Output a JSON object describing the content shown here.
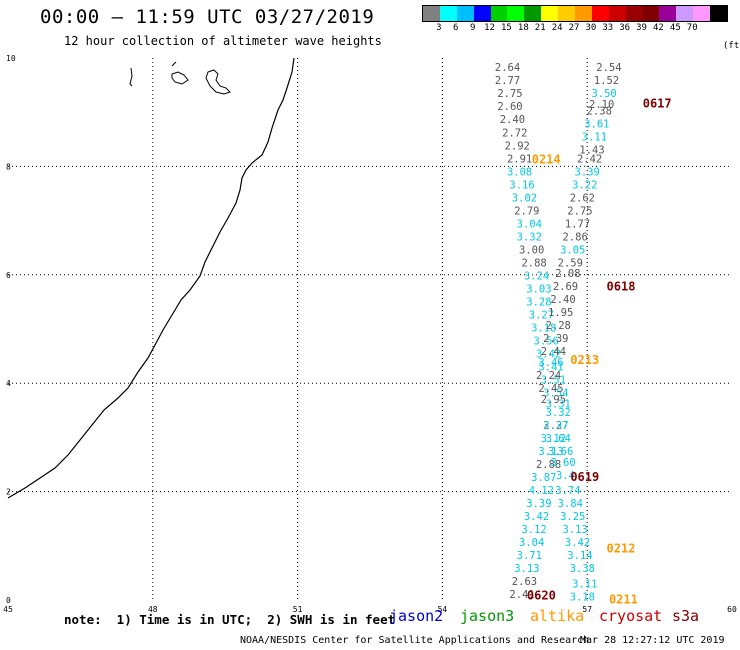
{
  "title": "00:00 – 11:59 UTC 03/27/2019",
  "subtitle": "12 hour collection of altimeter wave heights",
  "color_scale": {
    "colors": [
      "#808080",
      "#00ffff",
      "#00bfff",
      "#0000ff",
      "#00d000",
      "#00ff00",
      "#009900",
      "#ffff00",
      "#ffcc00",
      "#ff9900",
      "#ff0000",
      "#cc0000",
      "#990000",
      "#800000",
      "#990099",
      "#cc99ff",
      "#ff99ff",
      "#000000"
    ],
    "labels": [
      "3",
      "6",
      "9",
      "12",
      "15",
      "18",
      "21",
      "24",
      "27",
      "30",
      "33",
      "36",
      "39",
      "42",
      "45",
      "70"
    ],
    "unit": "(ft)"
  },
  "axes": {
    "x_ticks": [
      "45",
      "48",
      "51",
      "54",
      "57",
      "60"
    ],
    "y_ticks": [
      "0",
      "2",
      "4",
      "6",
      "8",
      "10"
    ],
    "x_range": [
      45,
      60
    ],
    "y_range": [
      0,
      10
    ]
  },
  "note": "note:  1) Time is in UTC;  2) SWH is in feet",
  "legend": [
    {
      "label": "jason2",
      "color": "#0000cc"
    },
    {
      "label": "jason3",
      "color": "#009900"
    },
    {
      "label": "altika",
      "color": "#ff9900"
    },
    {
      "label": "cryosat",
      "color": "#cc0000"
    },
    {
      "label": "s3a",
      "color": "#800000"
    }
  ],
  "credit": "NOAA/NESDIS Center for Satellite Applications and Research",
  "generated": "Mar 28 12:27:12 UTC 2019",
  "track_colors": {
    "gray": "#555555",
    "cyan": "#00c8e6"
  },
  "pass_labels": [
    {
      "text": "0214",
      "lon": 56.15,
      "lat": 8.15,
      "color": "#ff9900"
    },
    {
      "text": "0213",
      "lon": 56.95,
      "lat": 4.45,
      "color": "#ff9900"
    },
    {
      "text": "0212",
      "lon": 57.7,
      "lat": 0.97,
      "color": "#ff9900"
    },
    {
      "text": "0211",
      "lon": 57.75,
      "lat": 0.03,
      "color": "#ff9900"
    },
    {
      "text": "0617",
      "lon": 58.45,
      "lat": 9.18,
      "color": "#800000"
    },
    {
      "text": "0618",
      "lon": 57.7,
      "lat": 5.8,
      "color": "#800000"
    },
    {
      "text": "0619",
      "lon": 56.95,
      "lat": 2.29,
      "color": "#800000"
    },
    {
      "text": "0620",
      "lon": 56.05,
      "lat": 0.1,
      "color": "#800000"
    }
  ],
  "track_a": [
    {
      "v": "2.64",
      "lon": 55.35,
      "lat": 9.83,
      "c": "gray"
    },
    {
      "v": "2.77",
      "lon": 55.35,
      "lat": 9.59,
      "c": "gray"
    },
    {
      "v": "2.75",
      "lon": 55.4,
      "lat": 9.35,
      "c": "gray"
    },
    {
      "v": "2.60",
      "lon": 55.4,
      "lat": 9.11,
      "c": "gray"
    },
    {
      "v": "2.40",
      "lon": 55.45,
      "lat": 8.87,
      "c": "gray"
    },
    {
      "v": "2.72",
      "lon": 55.5,
      "lat": 8.63,
      "c": "gray"
    },
    {
      "v": "2.92",
      "lon": 55.55,
      "lat": 8.39,
      "c": "gray"
    },
    {
      "v": "2.91",
      "lon": 55.6,
      "lat": 8.15,
      "c": "gray"
    },
    {
      "v": "3.08",
      "lon": 55.6,
      "lat": 7.91,
      "c": "cyan"
    },
    {
      "v": "3.16",
      "lon": 55.65,
      "lat": 7.67,
      "c": "cyan"
    },
    {
      "v": "3.02",
      "lon": 55.7,
      "lat": 7.43,
      "c": "cyan"
    },
    {
      "v": "2.79",
      "lon": 55.75,
      "lat": 7.19,
      "c": "gray"
    },
    {
      "v": "3.04",
      "lon": 55.8,
      "lat": 6.95,
      "c": "cyan"
    },
    {
      "v": "3.32",
      "lon": 55.8,
      "lat": 6.71,
      "c": "cyan"
    },
    {
      "v": "3.00",
      "lon": 55.85,
      "lat": 6.47,
      "c": "gray"
    },
    {
      "v": "2.88",
      "lon": 55.9,
      "lat": 6.23,
      "c": "gray"
    },
    {
      "v": "3.24",
      "lon": 55.95,
      "lat": 5.99,
      "c": "cyan"
    },
    {
      "v": "3.03",
      "lon": 56.0,
      "lat": 5.75,
      "c": "cyan"
    },
    {
      "v": "3.28",
      "lon": 56.0,
      "lat": 5.51,
      "c": "cyan"
    },
    {
      "v": "3.27",
      "lon": 56.05,
      "lat": 5.27,
      "c": "cyan"
    },
    {
      "v": "3.18",
      "lon": 56.1,
      "lat": 5.03,
      "c": "cyan"
    },
    {
      "v": "3.56",
      "lon": 56.15,
      "lat": 4.79,
      "c": "cyan"
    },
    {
      "v": "3.42",
      "lon": 56.2,
      "lat": 4.55,
      "c": "cyan"
    },
    {
      "v": "3.41",
      "lon": 56.25,
      "lat": 4.31,
      "c": "cyan"
    },
    {
      "v": "3.51",
      "lon": 56.3,
      "lat": 4.07,
      "c": "cyan"
    },
    {
      "v": "3.54",
      "lon": 56.35,
      "lat": 3.83,
      "c": "cyan"
    },
    {
      "v": "3.31",
      "lon": 56.4,
      "lat": 3.63,
      "c": "cyan"
    },
    {
      "v": "3.32",
      "lon": 56.4,
      "lat": 3.47,
      "c": "cyan"
    },
    {
      "v": "2.27",
      "lon": 56.35,
      "lat": 3.23,
      "c": "gray"
    },
    {
      "v": "3.12",
      "lon": 56.3,
      "lat": 2.99,
      "c": "cyan"
    },
    {
      "v": "3.13",
      "lon": 56.25,
      "lat": 2.75,
      "c": "cyan"
    },
    {
      "v": "2.88",
      "lon": 56.2,
      "lat": 2.51,
      "c": "gray"
    },
    {
      "v": "3.87",
      "lon": 56.1,
      "lat": 2.27,
      "c": "cyan"
    },
    {
      "v": "4.12",
      "lon": 56.05,
      "lat": 2.03,
      "c": "cyan"
    },
    {
      "v": "3.39",
      "lon": 56.0,
      "lat": 1.79,
      "c": "cyan"
    },
    {
      "v": "3.42",
      "lon": 55.95,
      "lat": 1.55,
      "c": "cyan"
    },
    {
      "v": "3.12",
      "lon": 55.9,
      "lat": 1.31,
      "c": "cyan"
    },
    {
      "v": "3.04",
      "lon": 55.85,
      "lat": 1.07,
      "c": "cyan"
    },
    {
      "v": "3.71",
      "lon": 55.8,
      "lat": 0.83,
      "c": "cyan"
    },
    {
      "v": "3.13",
      "lon": 55.75,
      "lat": 0.59,
      "c": "cyan"
    },
    {
      "v": "2.63",
      "lon": 55.7,
      "lat": 0.35,
      "c": "gray"
    },
    {
      "v": "2.41",
      "lon": 55.65,
      "lat": 0.11,
      "c": "gray"
    }
  ],
  "track_b": [
    {
      "v": "2.54",
      "lon": 57.45,
      "lat": 9.83,
      "c": "gray"
    },
    {
      "v": "1.52",
      "lon": 57.4,
      "lat": 9.59,
      "c": "gray"
    },
    {
      "v": "3.50",
      "lon": 57.35,
      "lat": 9.35,
      "c": "cyan"
    },
    {
      "v": "2.10",
      "lon": 57.3,
      "lat": 9.15,
      "c": "gray"
    },
    {
      "v": "2.38",
      "lon": 57.25,
      "lat": 9.03,
      "c": "gray"
    },
    {
      "v": "3.61",
      "lon": 57.2,
      "lat": 8.79,
      "c": "cyan"
    },
    {
      "v": "3.11",
      "lon": 57.15,
      "lat": 8.55,
      "c": "cyan"
    },
    {
      "v": "1.43",
      "lon": 57.1,
      "lat": 8.31,
      "c": "gray"
    },
    {
      "v": "2.42",
      "lon": 57.05,
      "lat": 8.15,
      "c": "gray"
    },
    {
      "v": "3.39",
      "lon": 57.0,
      "lat": 7.91,
      "c": "cyan"
    },
    {
      "v": "3.22",
      "lon": 56.95,
      "lat": 7.67,
      "c": "cyan"
    },
    {
      "v": "2.62",
      "lon": 56.9,
      "lat": 7.43,
      "c": "gray"
    },
    {
      "v": "2.75",
      "lon": 56.85,
      "lat": 7.19,
      "c": "gray"
    },
    {
      "v": "1.77",
      "lon": 56.8,
      "lat": 6.95,
      "c": "gray"
    },
    {
      "v": "2.86",
      "lon": 56.75,
      "lat": 6.71,
      "c": "gray"
    },
    {
      "v": "3.05",
      "lon": 56.7,
      "lat": 6.47,
      "c": "cyan"
    },
    {
      "v": "2.59",
      "lon": 56.65,
      "lat": 6.23,
      "c": "gray"
    },
    {
      "v": "2.08",
      "lon": 56.6,
      "lat": 6.03,
      "c": "gray"
    },
    {
      "v": "2.69",
      "lon": 56.55,
      "lat": 5.79,
      "c": "gray"
    },
    {
      "v": "2.40",
      "lon": 56.5,
      "lat": 5.55,
      "c": "gray"
    },
    {
      "v": "1.95",
      "lon": 56.45,
      "lat": 5.31,
      "c": "gray"
    },
    {
      "v": "2.28",
      "lon": 56.4,
      "lat": 5.07,
      "c": "gray"
    },
    {
      "v": "2.39",
      "lon": 56.35,
      "lat": 4.83,
      "c": "gray"
    },
    {
      "v": "2.44",
      "lon": 56.3,
      "lat": 4.59,
      "c": "gray"
    },
    {
      "v": "3.46",
      "lon": 56.25,
      "lat": 4.39,
      "c": "cyan"
    },
    {
      "v": "2.24",
      "lon": 56.2,
      "lat": 4.15,
      "c": "gray"
    },
    {
      "v": "2.45",
      "lon": 56.25,
      "lat": 3.91,
      "c": "gray"
    },
    {
      "v": "2.95",
      "lon": 56.3,
      "lat": 3.71,
      "c": "gray"
    },
    {
      "v": "3.37",
      "lon": 56.35,
      "lat": 3.23,
      "c": "cyan"
    },
    {
      "v": "3.64",
      "lon": 56.4,
      "lat": 2.99,
      "c": "cyan"
    },
    {
      "v": "3.66",
      "lon": 56.45,
      "lat": 2.75,
      "c": "cyan"
    },
    {
      "v": "3.60",
      "lon": 56.5,
      "lat": 2.55,
      "c": "cyan"
    },
    {
      "v": "3.4",
      "lon": 56.55,
      "lat": 2.31,
      "c": "cyan"
    },
    {
      "v": "3.74",
      "lon": 56.6,
      "lat": 2.03,
      "c": "cyan"
    },
    {
      "v": "3.84",
      "lon": 56.65,
      "lat": 1.79,
      "c": "cyan"
    },
    {
      "v": "3.25",
      "lon": 56.7,
      "lat": 1.55,
      "c": "cyan"
    },
    {
      "v": "3.13",
      "lon": 56.75,
      "lat": 1.31,
      "c": "cyan"
    },
    {
      "v": "3.42",
      "lon": 56.8,
      "lat": 1.07,
      "c": "cyan"
    },
    {
      "v": "3.14",
      "lon": 56.85,
      "lat": 0.83,
      "c": "cyan"
    },
    {
      "v": "3.38",
      "lon": 56.9,
      "lat": 0.59,
      "c": "cyan"
    },
    {
      "v": "3.11",
      "lon": 56.95,
      "lat": 0.3,
      "c": "cyan"
    },
    {
      "v": "3.18",
      "lon": 56.9,
      "lat": 0.06,
      "c": "cyan"
    }
  ]
}
